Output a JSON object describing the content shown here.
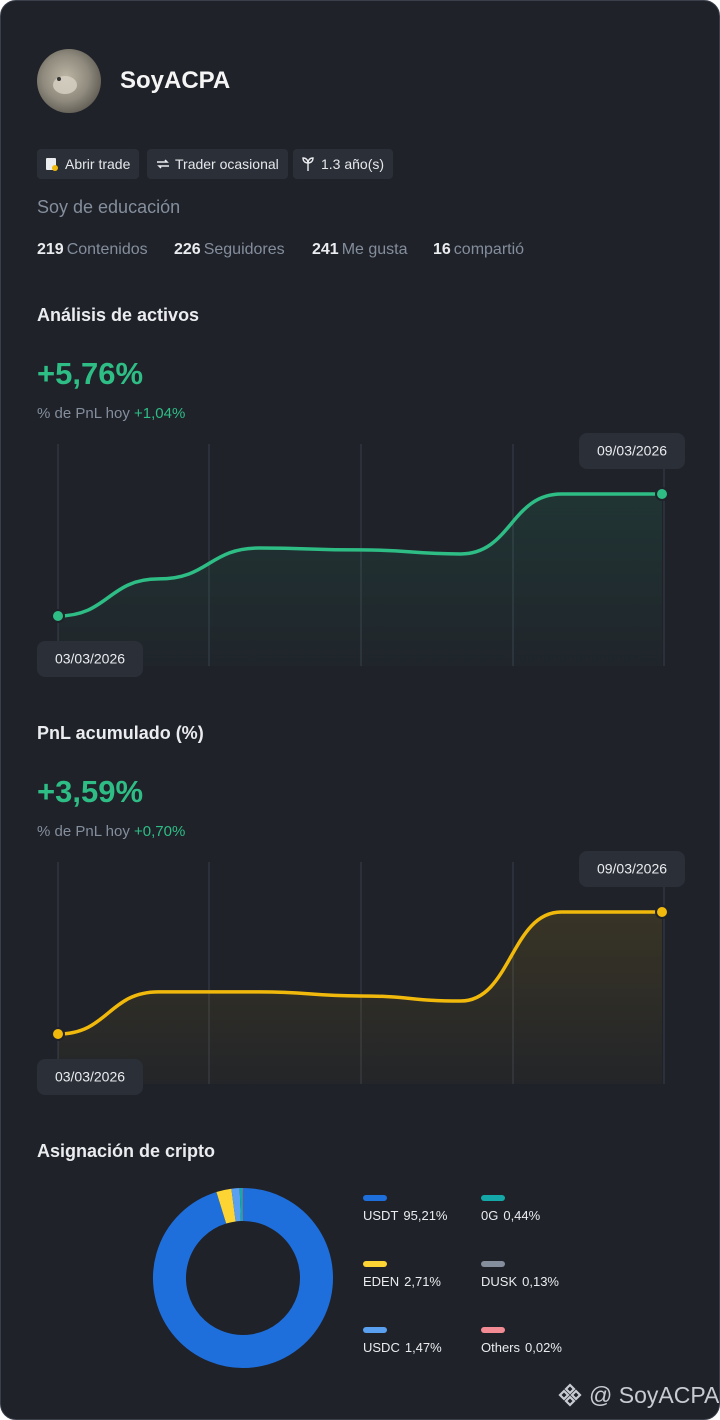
{
  "profile": {
    "name": "SoyACPA",
    "badges": [
      "Abrir trade",
      "Trader ocasional",
      "1.3 año(s)"
    ],
    "bio": "Soy de educación",
    "stats": [
      {
        "value": 219,
        "label": "Contenidos"
      },
      {
        "value": 226,
        "label": "Seguidores"
      },
      {
        "value": 241,
        "label": "Me gusta"
      },
      {
        "value": 16,
        "label": "compartió"
      }
    ]
  },
  "asset_analysis": {
    "title": "Análisis de activos",
    "headline": "+5,76%",
    "pnl_label": "% de PnL hoy",
    "pnl_value": "+1,04%",
    "chart": {
      "type": "line",
      "x": [
        "03/03/2026",
        null,
        null,
        null,
        null,
        null,
        "09/03/2026"
      ],
      "values": [
        0,
        1.75,
        3.21,
        3.12,
        2.93,
        5.76,
        5.76
      ],
      "color": "#2ebd85"
    }
  },
  "cumulative_pnl": {
    "title": "PnL acumulado (%)",
    "headline": "+3,59%",
    "pnl_label": "% de PnL hoy",
    "pnl_value": "+0,70%",
    "chart": {
      "type": "line",
      "x": [
        "03/03/2026",
        null,
        null,
        null,
        null,
        null,
        "09/03/2026"
      ],
      "values": [
        0,
        1.24,
        1.24,
        1.12,
        0.97,
        3.59,
        3.59
      ],
      "color": "#f0b90b"
    }
  },
  "allocation": {
    "title": "Asignación de cripto",
    "chart": {
      "type": "donut",
      "series": [
        {
          "name": "USDT",
          "color": "#1e6fdc",
          "values": [
            95.21
          ],
          "value_labels": [
            "95,21%"
          ]
        },
        {
          "name": "EDEN",
          "color": "#fcd535",
          "values": [
            2.71
          ],
          "value_labels": [
            "2,71%"
          ]
        },
        {
          "name": "USDC",
          "color": "#5aa0f0",
          "values": [
            1.47
          ],
          "value_labels": [
            "1,47%"
          ]
        },
        {
          "name": "0G",
          "color": "#14a8a8",
          "values": [
            0.44
          ],
          "value_labels": [
            "0,44%"
          ]
        },
        {
          "name": "DUSK",
          "color": "#848e9c",
          "values": [
            0.13
          ],
          "value_labels": [
            "0,13%"
          ]
        },
        {
          "name": "Others",
          "color": "#f28b93",
          "values": [
            0.02
          ],
          "value_labels": [
            "0,02%"
          ]
        }
      ]
    }
  },
  "watermark": "@ SoyACPA"
}
